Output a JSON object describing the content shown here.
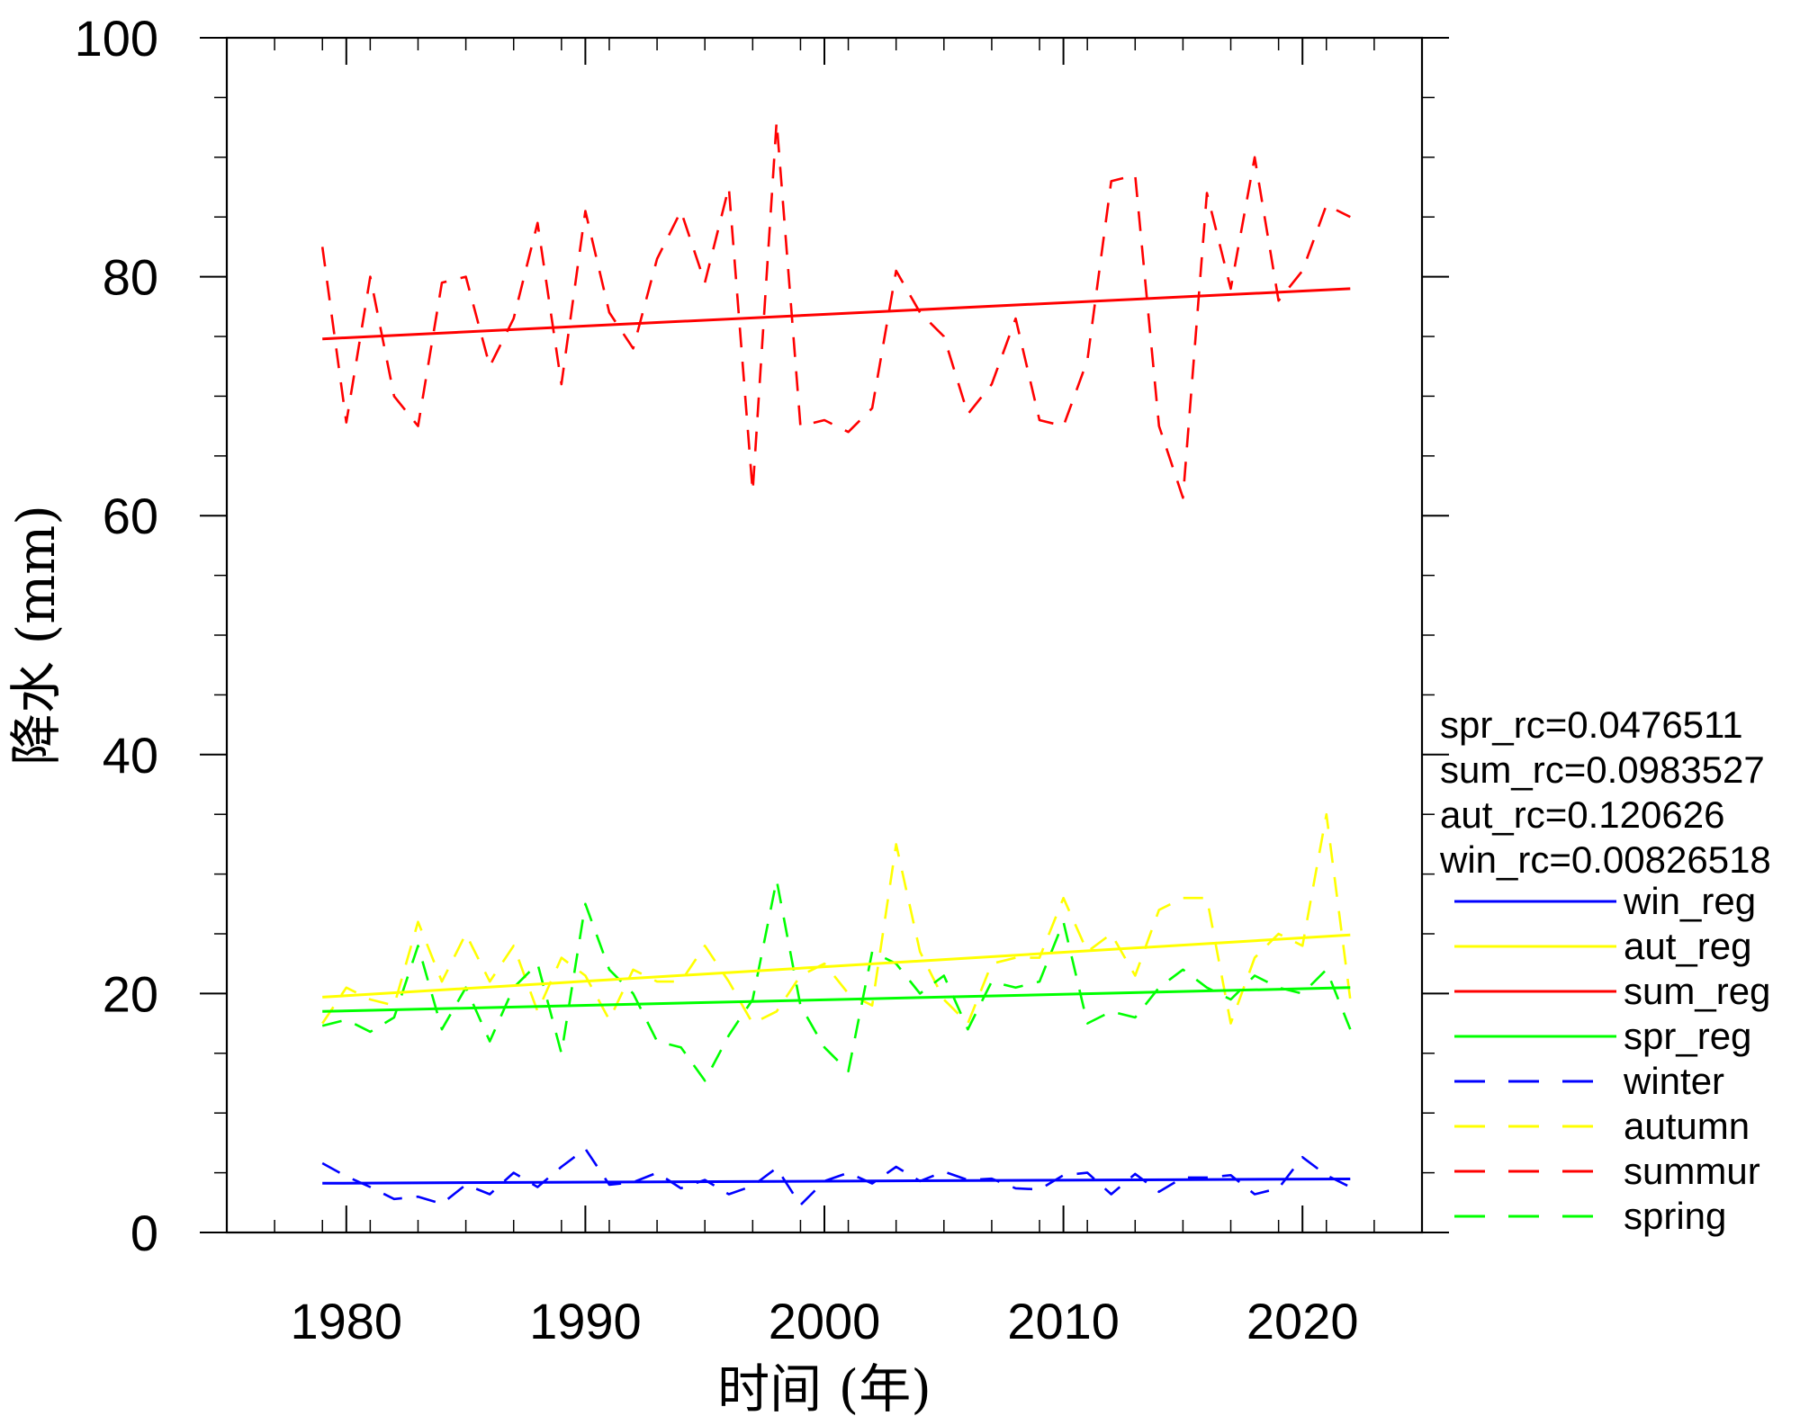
{
  "chart_data": {
    "type": "line",
    "xlabel": "时间 (年)",
    "ylabel": "降水 (mm)",
    "xlim": [
      1975,
      2025
    ],
    "ylim": [
      0,
      100
    ],
    "x_ticks": [
      1980,
      1990,
      2000,
      2010,
      2020
    ],
    "y_ticks": [
      0,
      20,
      40,
      60,
      80,
      100
    ],
    "x_minor_step": 2,
    "y_minor_step": 5,
    "years": [
      1979,
      1980,
      1981,
      1982,
      1983,
      1984,
      1985,
      1986,
      1987,
      1988,
      1989,
      1990,
      1991,
      1992,
      1993,
      1994,
      1995,
      1996,
      1997,
      1998,
      1999,
      2000,
      2001,
      2002,
      2003,
      2004,
      2005,
      2006,
      2007,
      2008,
      2009,
      2010,
      2011,
      2012,
      2013,
      2014,
      2015,
      2016,
      2017,
      2018,
      2019,
      2020,
      2021,
      2022
    ],
    "series": [
      {
        "name": "winter",
        "style": "dashed",
        "color": "#0000ff",
        "values": [
          5.8,
          4.7,
          3.8,
          2.8,
          3.0,
          2.4,
          4.0,
          3.2,
          5.0,
          3.8,
          5.5,
          7.0,
          4.0,
          4.2,
          5.0,
          3.7,
          4.4,
          3.2,
          3.9,
          5.4,
          2.3,
          4.3,
          5.0,
          4.1,
          5.5,
          4.3,
          5.1,
          4.4,
          4.5,
          3.7,
          3.6,
          4.8,
          5.0,
          3.2,
          4.9,
          3.4,
          4.6,
          4.6,
          4.8,
          3.2,
          3.7,
          6.3,
          4.8,
          3.8
        ]
      },
      {
        "name": "autumn",
        "style": "dashed",
        "color": "#ffff00",
        "values": [
          17.5,
          20.5,
          19.5,
          19.0,
          26.0,
          21.0,
          25.0,
          21.0,
          24.0,
          18.5,
          23.0,
          21.5,
          17.8,
          22.0,
          21.0,
          21.0,
          24.0,
          21.0,
          17.5,
          18.5,
          21.5,
          22.5,
          20.0,
          19.0,
          32.5,
          23.5,
          19.5,
          17.5,
          22.5,
          23.0,
          23.0,
          28.0,
          23.5,
          25.0,
          21.5,
          27.0,
          28.0,
          28.0,
          17.5,
          23.0,
          25.0,
          24.0,
          35.0,
          19.5
        ]
      },
      {
        "name": "summur",
        "style": "dashed",
        "color": "#ff0000",
        "values": [
          82.5,
          67.8,
          80.0,
          70.0,
          67.5,
          79.5,
          80.0,
          72.5,
          76.5,
          84.5,
          71.0,
          85.5,
          77.0,
          74.0,
          81.5,
          85.5,
          79.5,
          87.5,
          62.0,
          93.0,
          67.5,
          68.0,
          67.0,
          69.0,
          80.5,
          77.0,
          75.0,
          68.5,
          71.0,
          76.5,
          68.0,
          67.5,
          73.0,
          88.0,
          88.5,
          67.5,
          61.5,
          87.0,
          79.0,
          90.0,
          78.0,
          80.5,
          86.0,
          85.0
        ]
      },
      {
        "name": "spring",
        "style": "dashed",
        "color": "#00ff00",
        "values": [
          17.3,
          17.8,
          16.8,
          18.0,
          24.0,
          17.0,
          20.5,
          16.0,
          20.5,
          22.5,
          15.0,
          27.5,
          22.0,
          20.0,
          16.0,
          15.5,
          12.7,
          16.5,
          19.5,
          29.5,
          19.0,
          15.5,
          13.5,
          23.5,
          22.5,
          20.0,
          21.5,
          17.0,
          21.0,
          20.5,
          21.0,
          26.0,
          17.5,
          18.5,
          18.0,
          20.5,
          22.0,
          20.5,
          19.5,
          21.5,
          20.5,
          20.0,
          22.0,
          17.0
        ]
      },
      {
        "name": "win_reg",
        "style": "solid",
        "color": "#0000ff",
        "x": [
          1979,
          2022
        ],
        "values": [
          4.12,
          4.48
        ]
      },
      {
        "name": "aut_reg",
        "style": "solid",
        "color": "#ffff00",
        "x": [
          1979,
          2022
        ],
        "values": [
          19.7,
          24.9
        ]
      },
      {
        "name": "sum_reg",
        "style": "solid",
        "color": "#ff0000",
        "x": [
          1979,
          2022
        ],
        "values": [
          74.8,
          79.0
        ]
      },
      {
        "name": "spr_reg",
        "style": "solid",
        "color": "#00ff00",
        "x": [
          1979,
          2022
        ],
        "values": [
          18.5,
          20.5
        ]
      }
    ],
    "annotations": [
      "spr_rc=0.0476511",
      "sum_rc=0.0983527",
      "aut_rc=0.120626",
      "win_rc=0.00826518"
    ],
    "legend": {
      "position": "right",
      "entries": [
        {
          "label": "win_reg",
          "style": "solid",
          "color": "#0000ff"
        },
        {
          "label": "aut_reg",
          "style": "solid",
          "color": "#ffff00"
        },
        {
          "label": "sum_reg",
          "style": "solid",
          "color": "#ff0000"
        },
        {
          "label": "spr_reg",
          "style": "solid",
          "color": "#00ff00"
        },
        {
          "label": "winter",
          "style": "dashed",
          "color": "#0000ff"
        },
        {
          "label": "autumn",
          "style": "dashed",
          "color": "#ffff00"
        },
        {
          "label": "summur",
          "style": "dashed",
          "color": "#ff0000"
        },
        {
          "label": "spring",
          "style": "dashed",
          "color": "#00ff00"
        }
      ]
    }
  }
}
